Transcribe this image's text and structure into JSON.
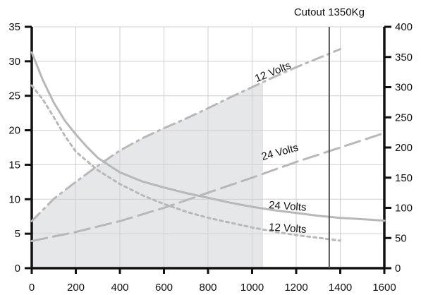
{
  "chart_data": {
    "type": "line",
    "title": "",
    "xlabel": "",
    "ylabel": "",
    "y2label": "",
    "xlim": [
      0,
      1600
    ],
    "ylim": [
      0,
      35
    ],
    "y2lim": [
      0,
      400
    ],
    "x_ticks": [
      0,
      200,
      400,
      600,
      800,
      1000,
      1200,
      1400,
      1600
    ],
    "y_ticks": [
      0,
      5,
      10,
      15,
      20,
      25,
      30,
      35
    ],
    "y2_ticks": [
      0,
      50,
      100,
      150,
      200,
      250,
      300,
      350,
      400
    ],
    "grid": true,
    "colors": {
      "axes": "#111111",
      "grid": "#cfcfcf",
      "curve": "#b8b8b8",
      "fill": "#e6e7e9",
      "cutout": "#555555"
    },
    "shaded_region": {
      "axis": "right",
      "x_range": [
        0,
        1050
      ],
      "upper_series": "12 Volts",
      "upper_axis": "right"
    },
    "cutout": {
      "x": 1350,
      "label": "Cutout 1350Kg"
    },
    "series": [
      {
        "label": "24 Volts",
        "axis": "left",
        "style": "solid",
        "points": [
          [
            0,
            31.3
          ],
          [
            50,
            27.3
          ],
          [
            100,
            24.0
          ],
          [
            150,
            21.4
          ],
          [
            200,
            19.4
          ],
          [
            250,
            17.6
          ],
          [
            300,
            16.0
          ],
          [
            400,
            13.9
          ],
          [
            500,
            12.6
          ],
          [
            600,
            11.7
          ],
          [
            700,
            10.9
          ],
          [
            800,
            10.2
          ],
          [
            900,
            9.5
          ],
          [
            1000,
            8.9
          ],
          [
            1100,
            8.4
          ],
          [
            1200,
            8.0
          ],
          [
            1300,
            7.6
          ],
          [
            1400,
            7.3
          ],
          [
            1500,
            7.1
          ],
          [
            1600,
            6.9
          ]
        ]
      },
      {
        "label": "12 Volts",
        "axis": "left",
        "style": "dotted",
        "points": [
          [
            0,
            26.5
          ],
          [
            50,
            24.5
          ],
          [
            100,
            21.9
          ],
          [
            150,
            19.2
          ],
          [
            200,
            16.9
          ],
          [
            300,
            14.2
          ],
          [
            400,
            12.2
          ],
          [
            500,
            10.6
          ],
          [
            600,
            9.3
          ],
          [
            700,
            8.2
          ],
          [
            800,
            7.3
          ],
          [
            900,
            6.6
          ],
          [
            1000,
            5.9
          ],
          [
            1100,
            5.3
          ],
          [
            1200,
            4.8
          ],
          [
            1300,
            4.4
          ],
          [
            1400,
            4.0
          ]
        ]
      },
      {
        "label": "12 Volts",
        "axis": "right",
        "style": "dash-dot",
        "points": [
          [
            0,
            78
          ],
          [
            100,
            115
          ],
          [
            200,
            143
          ],
          [
            300,
            170
          ],
          [
            400,
            195
          ],
          [
            500,
            215
          ],
          [
            600,
            232
          ],
          [
            700,
            248
          ],
          [
            800,
            265
          ],
          [
            900,
            283
          ],
          [
            1000,
            300
          ],
          [
            1100,
            317
          ],
          [
            1200,
            333
          ],
          [
            1300,
            348
          ],
          [
            1400,
            363
          ]
        ]
      },
      {
        "label": "24 Volts",
        "axis": "right",
        "style": "dashed",
        "points": [
          [
            0,
            45
          ],
          [
            200,
            60
          ],
          [
            400,
            78
          ],
          [
            600,
            100
          ],
          [
            800,
            125
          ],
          [
            1000,
            150
          ],
          [
            1100,
            163
          ],
          [
            1200,
            176
          ],
          [
            1300,
            188
          ],
          [
            1400,
            200
          ],
          [
            1500,
            212
          ],
          [
            1600,
            224
          ]
        ]
      }
    ],
    "annotations": [
      {
        "text": "12 Volts",
        "x": 1100,
        "y": 320,
        "axis": "right",
        "rotate": -22
      },
      {
        "text": "24 Volts",
        "x": 1130,
        "y": 187,
        "axis": "right",
        "rotate": -15
      },
      {
        "text": "24 Volts",
        "x": 1160,
        "y": 8.5,
        "axis": "left",
        "rotate": 4
      },
      {
        "text": "12 Volts",
        "x": 1160,
        "y": 5.3,
        "axis": "left",
        "rotate": 4
      }
    ]
  }
}
